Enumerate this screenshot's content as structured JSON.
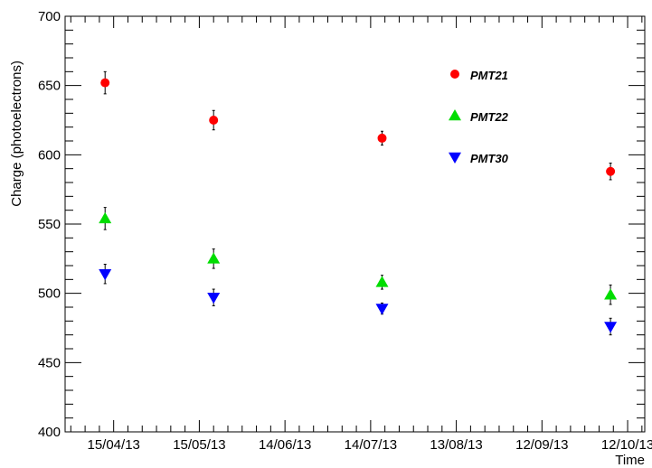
{
  "chart_data": {
    "type": "scatter",
    "title": "",
    "xlabel": "Time",
    "ylabel": "Charge (photoelectrons)",
    "ylim": [
      400,
      700
    ],
    "xlim": [
      "2013-03-29",
      "2013-10-18"
    ],
    "y_ticks": [
      400,
      450,
      500,
      550,
      600,
      650,
      700
    ],
    "x_tick_labels": [
      {
        "date": "2013-04-15",
        "label": "15/04/13"
      },
      {
        "date": "2013-05-15",
        "label": "15/05/13"
      },
      {
        "date": "2013-06-14",
        "label": "14/06/13"
      },
      {
        "date": "2013-07-14",
        "label": "14/07/13"
      },
      {
        "date": "2013-08-13",
        "label": "13/08/13"
      },
      {
        "date": "2013-09-12",
        "label": "12/09/13"
      },
      {
        "date": "2013-10-12",
        "label": "12/10/13"
      }
    ],
    "grid": false,
    "legend_position": "top-right",
    "series": [
      {
        "name": "PMT21",
        "marker": "circle",
        "color": "#ff0000",
        "points": [
          {
            "x": "2013-04-12",
            "y": 652,
            "err": 8
          },
          {
            "x": "2013-05-20",
            "y": 625,
            "err": 7
          },
          {
            "x": "2013-07-18",
            "y": 612,
            "err": 5
          },
          {
            "x": "2013-10-06",
            "y": 588,
            "err": 6
          }
        ]
      },
      {
        "name": "PMT22",
        "marker": "triangle-up",
        "color": "#00dd00",
        "points": [
          {
            "x": "2013-04-12",
            "y": 554,
            "err": 8
          },
          {
            "x": "2013-05-20",
            "y": 525,
            "err": 7
          },
          {
            "x": "2013-07-18",
            "y": 508,
            "err": 5
          },
          {
            "x": "2013-10-06",
            "y": 499,
            "err": 7
          }
        ]
      },
      {
        "name": "PMT30",
        "marker": "triangle-down",
        "color": "#0000ff",
        "points": [
          {
            "x": "2013-04-12",
            "y": 514,
            "err": 7
          },
          {
            "x": "2013-05-20",
            "y": 497,
            "err": 6
          },
          {
            "x": "2013-07-18",
            "y": 489,
            "err": 4
          },
          {
            "x": "2013-10-06",
            "y": 476,
            "err": 6
          }
        ]
      }
    ]
  }
}
